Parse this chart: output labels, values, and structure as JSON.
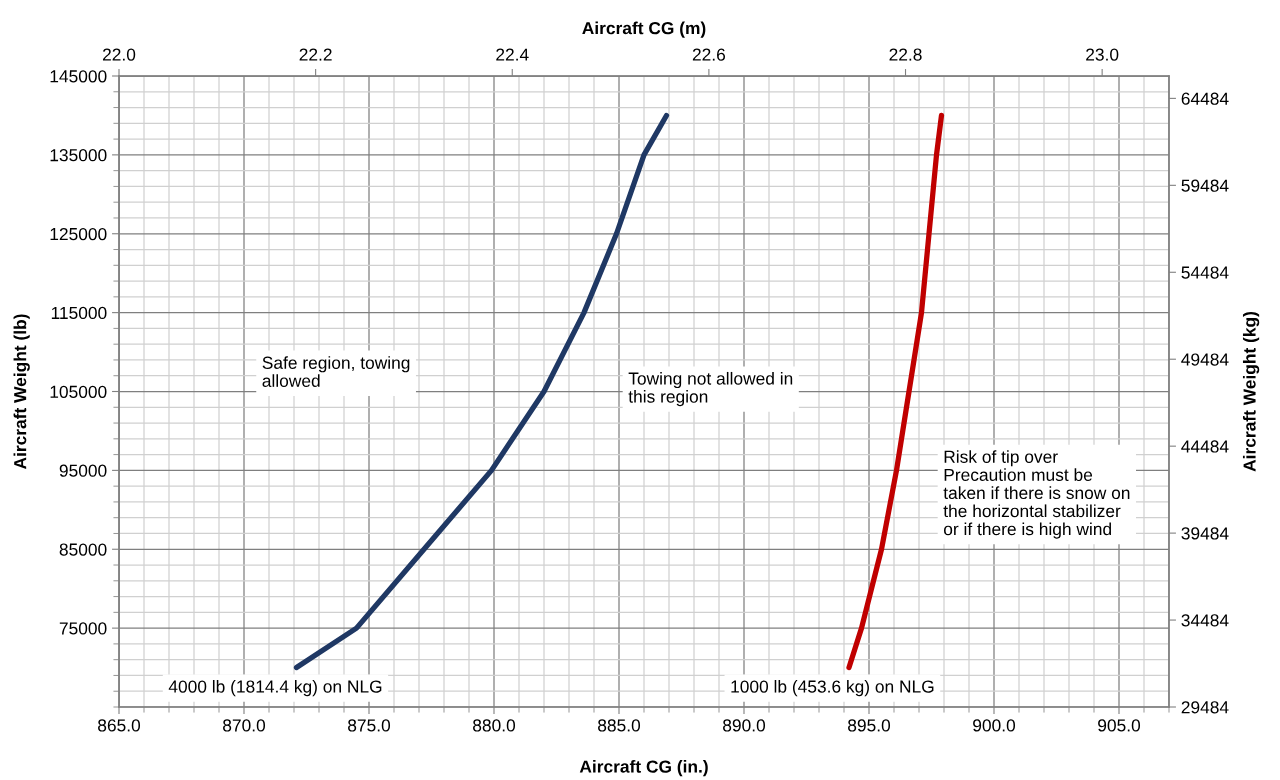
{
  "chart_data": {
    "type": "line",
    "xlabel": "Aircraft CG (in.)",
    "x2label": "Aircraft CG (m)",
    "ylabel": "Aircraft Weight (lb)",
    "y2label": "Aircraft Weight (kg)",
    "xlim": [
      865,
      907
    ],
    "xticks": [
      {
        "value": 865,
        "label": "865.0"
      },
      {
        "value": 870,
        "label": "870.0"
      },
      {
        "value": 875,
        "label": "875.0"
      },
      {
        "value": 880,
        "label": "880.0"
      },
      {
        "value": 885,
        "label": "885.0"
      },
      {
        "value": 890,
        "label": "890.0"
      },
      {
        "value": 895,
        "label": "895.0"
      },
      {
        "value": 900,
        "label": "900.0"
      },
      {
        "value": 905,
        "label": "905.0"
      }
    ],
    "x2lim": [
      22.0,
      23.068
    ],
    "x2ticks": [
      {
        "value": 22.0,
        "label": "22.0"
      },
      {
        "value": 22.2,
        "label": "22.2"
      },
      {
        "value": 22.4,
        "label": "22.4"
      },
      {
        "value": 22.6,
        "label": "22.6"
      },
      {
        "value": 22.8,
        "label": "22.8"
      },
      {
        "value": 23.0,
        "label": "23.0"
      }
    ],
    "ylim": [
      65000,
      145000
    ],
    "yticks": [
      75000,
      85000,
      95000,
      105000,
      115000,
      125000,
      135000,
      145000
    ],
    "y2lim": [
      29484,
      65771
    ],
    "y2ticks": [
      29484,
      34484,
      39484,
      44484,
      49484,
      54484,
      59484,
      64484
    ],
    "grid": true,
    "series": [
      {
        "name": "4000 lb (1814.4 kg) on NLG",
        "color": "#1f3864",
        "x": [
          872.1,
          874.5,
          877.2,
          879.9,
          882.0,
          883.6,
          884.9,
          886.0,
          886.9
        ],
        "values": [
          70000,
          75000,
          85000,
          95000,
          105000,
          115000,
          125000,
          135000,
          140000
        ]
      },
      {
        "name": "1000 lb (453.6 kg) on NLG",
        "color": "#c00000",
        "x": [
          894.2,
          894.7,
          895.5,
          896.1,
          896.6,
          897.1,
          897.4,
          897.7,
          897.9
        ],
        "values": [
          70000,
          75000,
          85000,
          95000,
          105000,
          115000,
          125000,
          135000,
          140000
        ]
      }
    ],
    "annotations": [
      "Safe region, towing\nallowed",
      "Towing not allowed in\nthis region",
      "Risk of tip over\nPrecaution must be\ntaken if there is snow on\nthe horizontal stabilizer\nor if there is high wind"
    ]
  }
}
